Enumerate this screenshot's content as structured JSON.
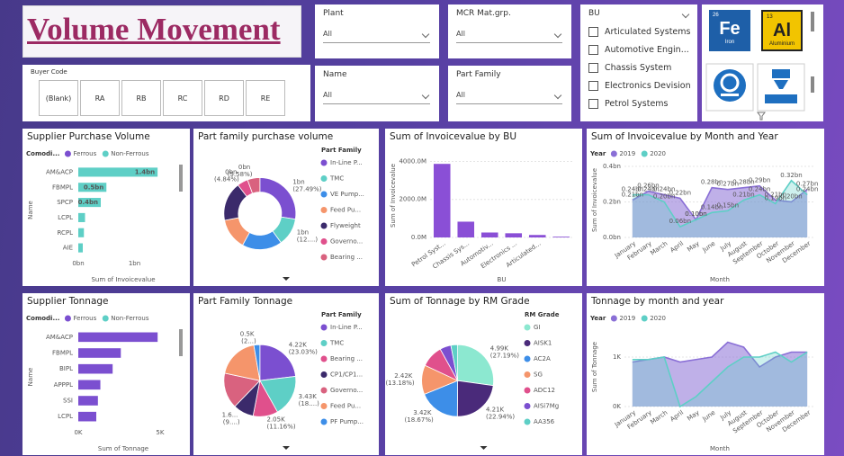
{
  "header": {
    "title": "Volume Movement"
  },
  "slicers": {
    "buyer_code": {
      "label": "Buyer Code",
      "options": [
        "(Blank)",
        "RA",
        "RB",
        "RC",
        "RD",
        "RE"
      ]
    },
    "plant": {
      "label": "Plant",
      "value": "All"
    },
    "mcr": {
      "label": "MCR Mat.grp.",
      "value": "All"
    },
    "name": {
      "label": "Name",
      "value": "All"
    },
    "part_family": {
      "label": "Part Family",
      "value": "All"
    },
    "bu": {
      "label": "BU",
      "options": [
        "Articulated Systems",
        "Automotive Engin...",
        "Chassis System",
        "Electronics Devision",
        "Petrol Systems"
      ]
    }
  },
  "tiles": [
    {
      "number": "26",
      "symbol": "Fe",
      "name": "Iron"
    },
    {
      "number": "13",
      "symbol": "Al",
      "name": "Aluminium"
    }
  ],
  "chart_data": [
    {
      "type": "hbar",
      "title": "Supplier Purchase Volume",
      "legend_title": "Comodi...",
      "categories": [
        "AM&ACP",
        "FBMPL",
        "SPCP",
        "LCPL",
        "RCPL",
        "AIE"
      ],
      "series": [
        {
          "name": "Ferrous",
          "color": "#7b4fd0",
          "values": [
            null,
            null,
            null,
            null,
            null,
            null
          ]
        },
        {
          "name": "Non-Ferrous",
          "color": "#5ecfc6",
          "values": [
            1.41,
            0.5,
            0.4,
            0.12,
            0.1,
            0.08
          ],
          "value_labels": [
            "1.4bn",
            "0.5bn",
            "0.4bn",
            null,
            null,
            null
          ]
        }
      ],
      "xlim": [
        0,
        1.6
      ],
      "xticks": [
        {
          "value": 0,
          "label": "0bn"
        },
        {
          "value": 1,
          "label": "1bn"
        }
      ],
      "xlabel": "Sum of Invoicevalue",
      "ylabel": "Name"
    },
    {
      "type": "donut",
      "title": "Part family purchase volume",
      "legend_title": "Part Family",
      "categories": [
        "In-Line P...",
        "TMC",
        "VE Pump...",
        "Feed Pu...",
        "Flyweight",
        "Governo...",
        "Bearing ..."
      ],
      "colors": [
        "#7b4fd0",
        "#5ecfc6",
        "#3d8ee8",
        "#f5956b",
        "#3b2a6b",
        "#e0508c",
        "#d9627f"
      ],
      "values": [
        27.49,
        12.5,
        18,
        14,
        17.59,
        4.84,
        5.58
      ],
      "value_labels": [
        "1bn (27.49%)",
        "1bn (12....)",
        null,
        null,
        null,
        "0bn (4.84%)",
        "0bn (5.58%)"
      ]
    },
    {
      "type": "bar",
      "title": "Sum of Invoicevalue by BU",
      "categories": [
        "Petrol Syst...",
        "Chassis Sys...",
        "Automotiv...",
        "Electronics ...",
        "Articulated...",
        null
      ],
      "values": [
        3870,
        830,
        260,
        220,
        130,
        40
      ],
      "color": "#8a4fd6",
      "ylim": [
        0,
        4400
      ],
      "yticks": [
        {
          "value": 0,
          "label": "0.0M"
        },
        {
          "value": 2000,
          "label": "2000.0M"
        },
        {
          "value": 4000,
          "label": "4000.0M"
        }
      ],
      "grid": true,
      "xlabel": "BU",
      "ylabel": "Sum of Invoicevalue"
    },
    {
      "type": "area",
      "title": "Sum of Invoicevalue by Month and Year",
      "legend_title": "Year",
      "categories": [
        "January",
        "February",
        "March",
        "April",
        "May",
        "June",
        "July",
        "August",
        "September",
        "October",
        "November",
        "December"
      ],
      "series": [
        {
          "name": "2019",
          "color": "#8a6fd6",
          "values": [
            0.21,
            0.26,
            0.24,
            0.22,
            0.1,
            0.28,
            0.27,
            0.28,
            0.29,
            0.21,
            0.2,
            0.27
          ],
          "value_labels": [
            "0.21bn",
            "0.26bn",
            "0.24bn",
            "0.22bn",
            "0.10bn",
            "0.28bn",
            "0.27bn",
            "0.28bn",
            "0.29bn",
            "0.21bn",
            "0.20bn",
            "0.27bn"
          ]
        },
        {
          "name": "2020",
          "color": "#5ecfc6",
          "values": [
            0.24,
            0.24,
            0.2,
            0.06,
            0.1,
            0.14,
            0.15,
            0.21,
            0.24,
            0.19,
            0.32,
            0.24
          ],
          "value_labels": [
            "0.24bn",
            "0.24bn",
            "0.20bn",
            "0.06bn",
            "0.10bn",
            "0.14bn",
            "0.15bn",
            "0.21bn",
            "0.24bn",
            "0.19bn",
            "0.32bn",
            "0.24bn"
          ]
        }
      ],
      "ylim": [
        0,
        0.42
      ],
      "yticks": [
        {
          "value": 0,
          "label": "0.0bn"
        },
        {
          "value": 0.2,
          "label": "0.2bn"
        },
        {
          "value": 0.4,
          "label": "0.4bn"
        }
      ],
      "grid": true,
      "xlabel": "Month",
      "ylabel": "Sum of Invoicevalue"
    },
    {
      "type": "hbar",
      "title": "Supplier Tonnage",
      "legend_title": "Comodi...",
      "categories": [
        "AM&ACP",
        "FBMPL",
        "BIPL",
        "APPPL",
        "SSI",
        "LCPL"
      ],
      "series": [
        {
          "name": "Ferrous",
          "color": "#7b4fd0",
          "values": [
            4.85,
            2.6,
            2.1,
            1.35,
            1.2,
            1.1
          ]
        },
        {
          "name": "Non-Ferrous",
          "color": "#5ecfc6",
          "values": [
            null,
            null,
            null,
            null,
            null,
            null
          ]
        }
      ],
      "xlim": [
        0,
        5.5
      ],
      "xticks": [
        {
          "value": 0,
          "label": "0K"
        },
        {
          "value": 5,
          "label": "5K"
        }
      ],
      "xlabel": "Sum of Tonnage",
      "ylabel": "Name"
    },
    {
      "type": "pie",
      "title": "Part Family Tonnage",
      "legend_title": "Part Family",
      "categories": [
        "In-Line P...",
        "TMC",
        "Bearing ...",
        "CP1/CP1...",
        "Governo...",
        "Feed Pu...",
        "PF Pump..."
      ],
      "colors": [
        "#7b4fd0",
        "#5ecfc6",
        "#e0508c",
        "#3b2a6b",
        "#d9627f",
        "#f5956b",
        "#3d8ee8"
      ],
      "values": [
        23.03,
        18.7,
        11.16,
        9.2,
        16,
        18.91,
        2.7
      ],
      "value_labels": [
        "4.22K (23.03%)",
        "3.43K (18....)",
        "2.05K (11.16%)",
        "1.6... (9....)",
        null,
        null,
        "0.5K (2...)"
      ]
    },
    {
      "type": "pie",
      "title": "Sum of Tonnage by RM Grade",
      "legend_title": "RM Grade",
      "categories": [
        "GI",
        "AISK1",
        "AC2A",
        "SG",
        "ADC12",
        "AISi7Mg",
        "AA356"
      ],
      "colors": [
        "#8ce8d0",
        "#4a2a7a",
        "#3d8ee8",
        "#f5956b",
        "#e0508c",
        "#7b4fd0",
        "#5ecfc6"
      ],
      "values": [
        27.19,
        22.94,
        18.67,
        13.18,
        10,
        5,
        3.02
      ],
      "value_labels": [
        "4.99K (27.19%)",
        "4.21K (22.94%)",
        "3.42K (18.67%)",
        "2.42K (13.18%)",
        null,
        null,
        null
      ]
    },
    {
      "type": "area",
      "title": "Tonnage by month and year",
      "legend_title": "Year",
      "categories": [
        "January",
        "February",
        "March",
        "April",
        "May",
        "June",
        "July",
        "August",
        "September",
        "October",
        "November",
        "December"
      ],
      "series": [
        {
          "name": "2019",
          "color": "#8a6fd6",
          "values": [
            0.9,
            0.95,
            1.0,
            0.9,
            0.95,
            1.0,
            1.3,
            1.2,
            0.8,
            1.0,
            1.1,
            1.1
          ]
        },
        {
          "name": "2020",
          "color": "#5ecfc6",
          "values": [
            0.95,
            0.95,
            1.0,
            0.0,
            0.2,
            0.5,
            0.8,
            1.0,
            1.0,
            1.1,
            0.9,
            1.1
          ]
        }
      ],
      "ylim": [
        0,
        1.6
      ],
      "yticks": [
        {
          "value": 0,
          "label": "0K"
        },
        {
          "value": 1,
          "label": "1K"
        }
      ],
      "grid": true,
      "xlabel": "Month",
      "ylabel": "Sum of Tonnage"
    }
  ]
}
